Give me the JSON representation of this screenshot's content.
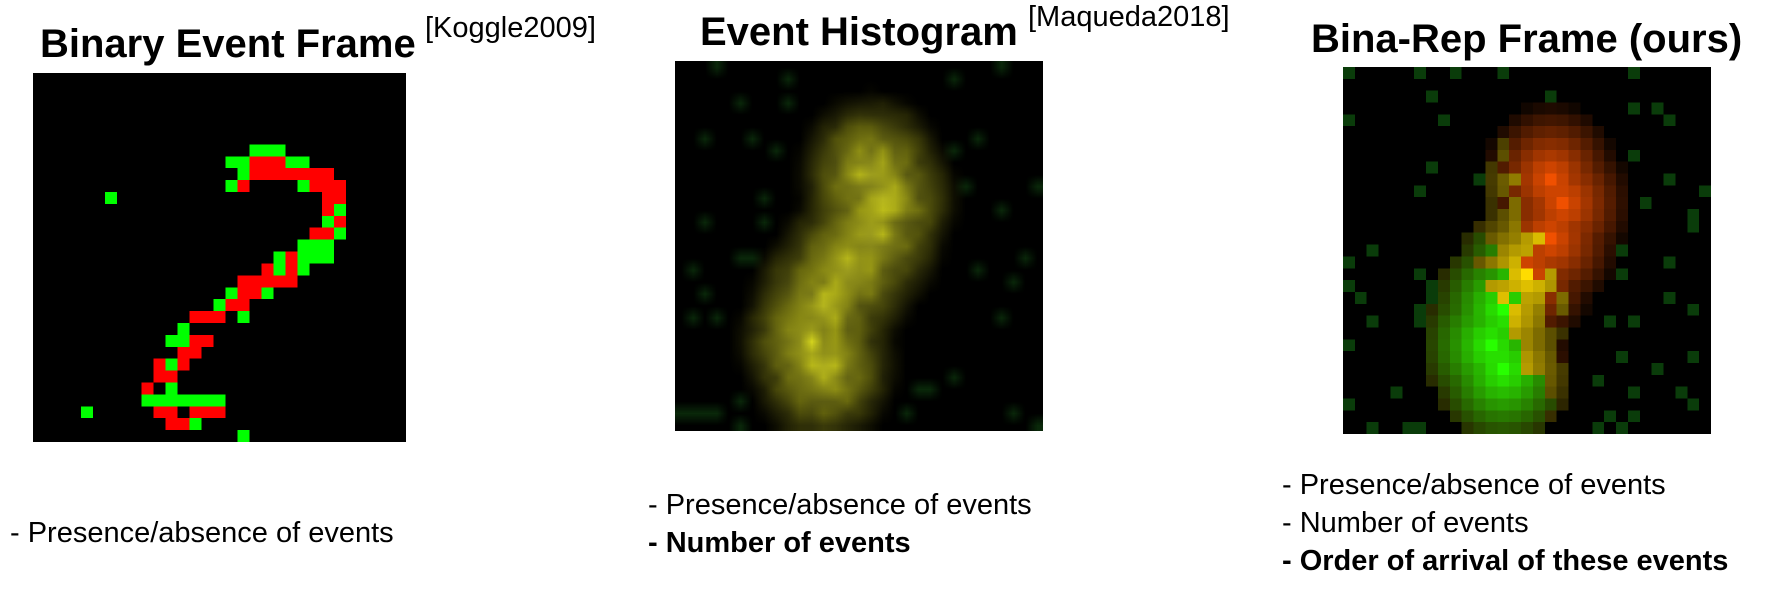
{
  "panels": [
    {
      "title": "Binary Event Frame",
      "citation": "[Koggle2009]",
      "features": [
        {
          "text": "- Presence/absence of events",
          "bold": false
        }
      ]
    },
    {
      "title": "Event Histogram",
      "citation": "[Maqueda2018]",
      "features": [
        {
          "text": "- Presence/absence of events",
          "bold": false
        },
        {
          "text": "- Number of events",
          "bold": true
        }
      ]
    },
    {
      "title": "Bina-Rep Frame (ours)",
      "citation": "",
      "features": [
        {
          "text": "- Presence/absence of events",
          "bold": false
        },
        {
          "text": "- Number of events",
          "bold": false
        },
        {
          "text": "- Order of arrival of these events",
          "bold": true
        }
      ]
    }
  ],
  "colors": {
    "background": "#000000",
    "positive_event": "#ff0000",
    "negative_event": "#00ff00",
    "histogram_event": "#e6e61a"
  }
}
